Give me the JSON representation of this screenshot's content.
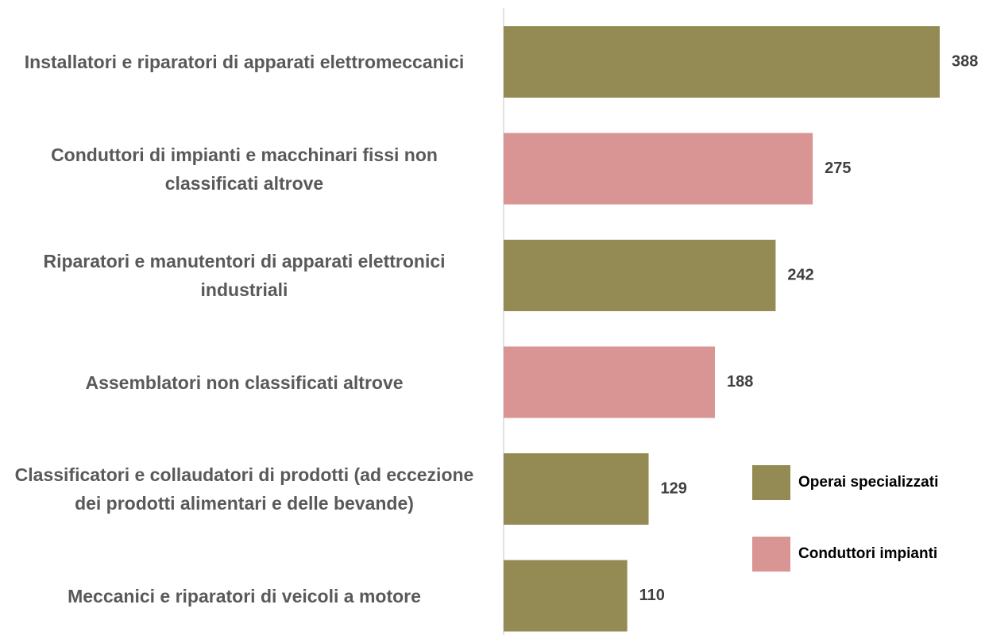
{
  "chart_data": {
    "type": "bar",
    "orientation": "horizontal",
    "categories": [
      "Installatori e riparatori di apparati elettromeccanici",
      "Conduttori di impianti e macchinari fissi non classificati altrove",
      "Riparatori e manutentori di apparati elettronici industriali",
      "Assemblatori non classificati altrove",
      "Classificatori e collaudatori di prodotti (ad eccezione dei prodotti alimentari e delle bevande)",
      "Meccanici e riparatori di veicoli a motore"
    ],
    "series": [
      {
        "name": "Operai specializzati",
        "color": "#948a54",
        "values": [
          388,
          null,
          242,
          null,
          129,
          110
        ]
      },
      {
        "name": "Conduttori impianti",
        "color": "#d99594",
        "values": [
          null,
          275,
          null,
          188,
          null,
          null
        ]
      }
    ],
    "legend": "right"
  }
}
